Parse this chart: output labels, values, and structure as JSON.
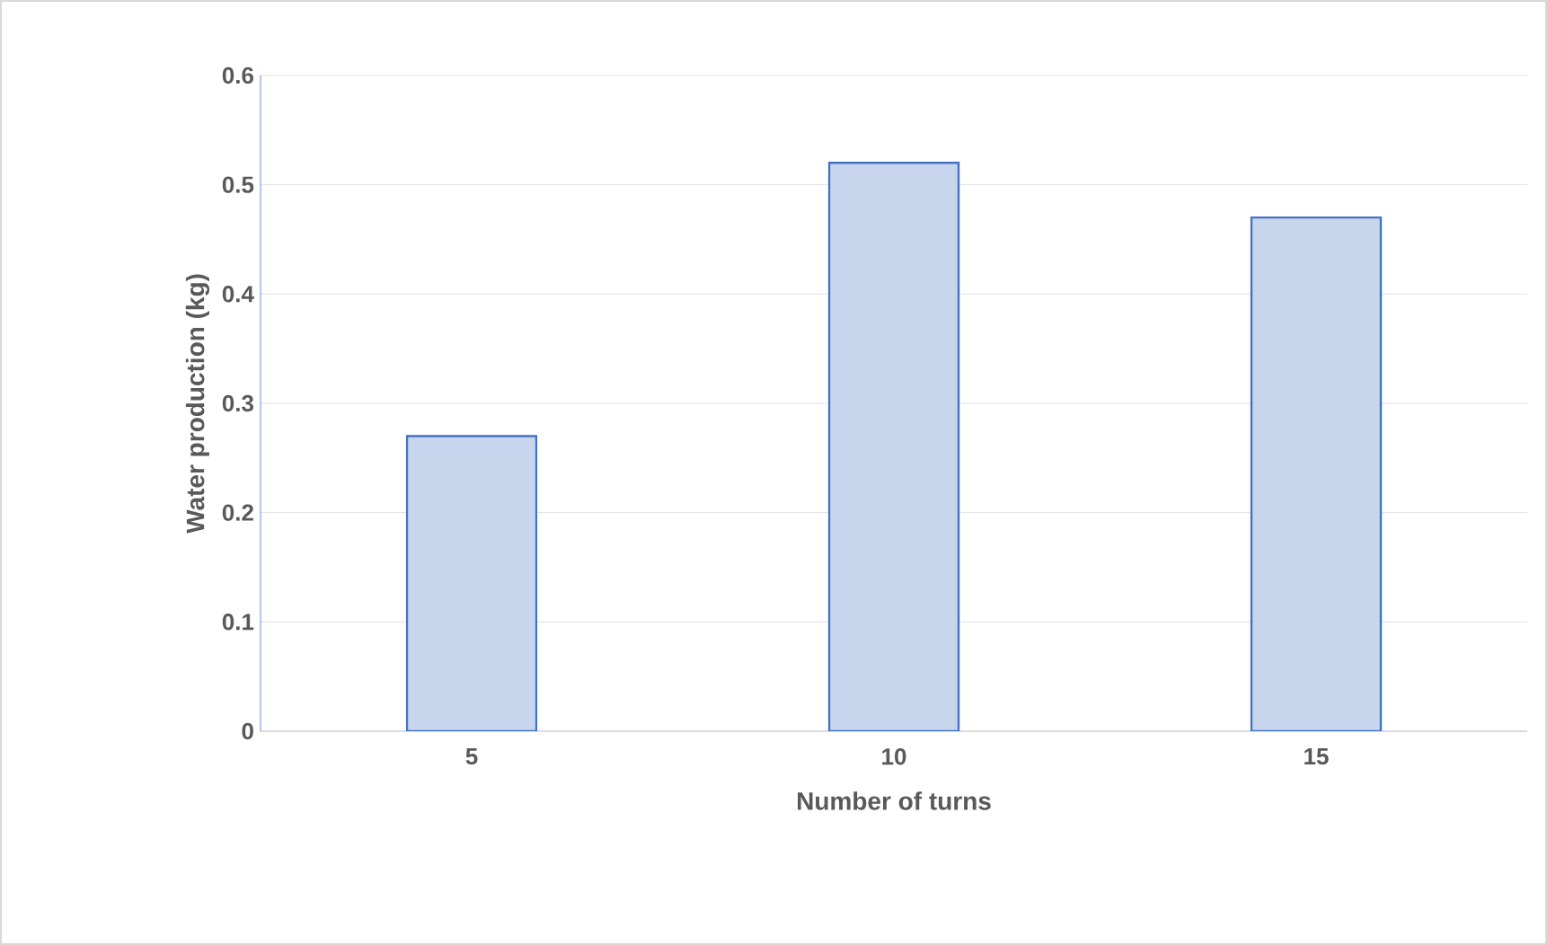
{
  "chart_data": {
    "type": "bar",
    "xlabel": "Number of turns",
    "ylabel": "Water production (kg)",
    "categories": [
      "5",
      "10",
      "15"
    ],
    "values": [
      0.27,
      0.52,
      0.47
    ],
    "colors": [
      "#4472c4",
      "#4472c4",
      "#4472c4"
    ],
    "ylim": [
      0,
      0.6
    ],
    "yticks": [
      0,
      0.1,
      0.2,
      0.3,
      0.4,
      0.5,
      0.6
    ],
    "grid": "y"
  }
}
